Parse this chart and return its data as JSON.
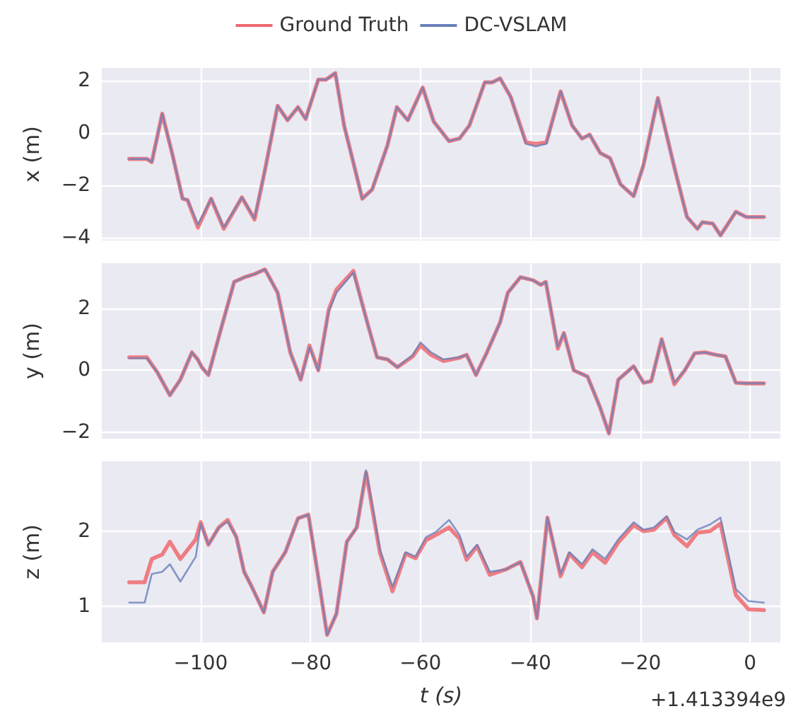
{
  "chart_data": [
    {
      "type": "line",
      "ylabel": "x (m)",
      "xlim": [
        -118,
        5.5
      ],
      "xticks": [
        -100,
        -80,
        -60,
        -40,
        -20,
        0
      ],
      "ylim": [
        -4.1,
        2.5
      ],
      "yticks": [
        -4,
        -2,
        0,
        2
      ],
      "grid": true,
      "legend": "top",
      "tick_labels": "y",
      "marker": "none",
      "line_style": "solid",
      "series": [
        {
          "name": "Ground Truth",
          "color": "#ee6a70",
          "x": [
            -113,
            -109.8,
            -108.9,
            -107,
            -105.1,
            -103.3,
            -102.4,
            -100.5,
            -98.1,
            -95.8,
            -92.5,
            -90.2,
            -88.3,
            -86,
            -84.2,
            -82.3,
            -80.9,
            -78.6,
            -77.2,
            -75.5,
            -73.9,
            -72,
            -70.6,
            -68.8,
            -66,
            -64.3,
            -62.3,
            -59.6,
            -57.6,
            -54.8,
            -52.9,
            -51.1,
            -48.3,
            -46.9,
            -45.5,
            -43.6,
            -40.8,
            -39,
            -37.1,
            -34.5,
            -32.4,
            -30.6,
            -29.2,
            -27.3,
            -25.5,
            -23.6,
            -21.2,
            -19.4,
            -16.8,
            -13.8,
            -11.5,
            -9.6,
            -8.7,
            -6.8,
            -5.4,
            -2.6,
            -0.7,
            2.5
          ],
          "values": [
            -0.98,
            -0.98,
            -1.1,
            0.75,
            -0.85,
            -2.5,
            -2.55,
            -3.6,
            -2.5,
            -3.65,
            -2.45,
            -3.3,
            -1.4,
            1.05,
            0.5,
            1.0,
            0.55,
            2.05,
            2.05,
            2.3,
            0.3,
            -1.3,
            -2.5,
            -2.15,
            -0.45,
            1.0,
            0.5,
            1.75,
            0.45,
            -0.3,
            -0.2,
            0.3,
            1.95,
            1.95,
            2.1,
            1.4,
            -0.35,
            -0.4,
            -0.35,
            1.6,
            0.3,
            -0.2,
            -0.05,
            -0.75,
            -0.95,
            -1.95,
            -2.4,
            -1.2,
            1.35,
            -1.3,
            -3.2,
            -3.65,
            -3.4,
            -3.45,
            -3.9,
            -3.0,
            -3.2,
            -3.2
          ]
        },
        {
          "name": "DC-VSLAM",
          "color": "#6a80b9",
          "x": [
            -113,
            -109.8,
            -108.9,
            -107,
            -105.1,
            -103.3,
            -102.4,
            -100.5,
            -98.1,
            -95.8,
            -92.5,
            -90.2,
            -88.3,
            -86,
            -84.2,
            -82.3,
            -80.9,
            -78.6,
            -77.2,
            -75.5,
            -73.9,
            -72,
            -70.6,
            -68.8,
            -66,
            -64.3,
            -62.3,
            -59.6,
            -57.6,
            -54.8,
            -52.9,
            -51.1,
            -48.3,
            -46.9,
            -45.5,
            -43.6,
            -40.8,
            -39,
            -37.1,
            -34.5,
            -32.4,
            -30.6,
            -29.2,
            -27.3,
            -25.5,
            -23.6,
            -21.2,
            -19.4,
            -16.8,
            -13.8,
            -11.5,
            -9.6,
            -8.7,
            -6.8,
            -5.4,
            -2.6,
            -0.7,
            2.5
          ],
          "values": [
            -0.98,
            -0.98,
            -1.1,
            0.75,
            -0.85,
            -2.5,
            -2.55,
            -3.5,
            -2.5,
            -3.6,
            -2.45,
            -3.25,
            -1.4,
            1.05,
            0.5,
            1.0,
            0.55,
            2.05,
            2.05,
            2.3,
            0.3,
            -1.3,
            -2.5,
            -2.15,
            -0.45,
            1.0,
            0.5,
            1.75,
            0.45,
            -0.3,
            -0.2,
            0.3,
            1.95,
            1.95,
            2.1,
            1.4,
            -0.4,
            -0.5,
            -0.4,
            1.6,
            0.3,
            -0.2,
            -0.05,
            -0.75,
            -0.95,
            -1.95,
            -2.4,
            -1.2,
            1.35,
            -1.3,
            -3.2,
            -3.65,
            -3.4,
            -3.45,
            -3.9,
            -3.0,
            -3.2,
            -3.2
          ]
        }
      ]
    },
    {
      "type": "line",
      "ylabel": "y (m)",
      "xlim": [
        -118,
        5.5
      ],
      "xticks": [
        -100,
        -80,
        -60,
        -40,
        -20,
        0
      ],
      "ylim": [
        -2.2,
        3.45
      ],
      "yticks": [
        -2,
        0,
        2
      ],
      "grid": true,
      "tick_labels": "y",
      "marker": "none",
      "line_style": "solid",
      "series": [
        {
          "color": "#ee6a70",
          "x": [
            -113,
            -109.8,
            -107.9,
            -105.6,
            -103.7,
            -101.6,
            -100.5,
            -99.8,
            -98.6,
            -96.2,
            -93.9,
            -92,
            -90.2,
            -88.3,
            -86,
            -83.7,
            -81.8,
            -80.2,
            -78.6,
            -76.7,
            -75.3,
            -72.2,
            -69.7,
            -67.9,
            -66,
            -64.2,
            -61.4,
            -60,
            -58.1,
            -55.8,
            -53,
            -51.6,
            -49.9,
            -47.9,
            -45.5,
            -44.1,
            -41.8,
            -39.5,
            -38.1,
            -37.2,
            -35,
            -33.9,
            -32.1,
            -29.6,
            -27.3,
            -25.7,
            -24,
            -21.2,
            -19.4,
            -18,
            -16.1,
            -13.8,
            -11.9,
            -10.1,
            -8.2,
            -6.3,
            -4.5,
            -2.6,
            -0.7,
            2.5
          ],
          "values": [
            0.42,
            0.42,
            -0.06,
            -0.8,
            -0.3,
            0.58,
            0.34,
            0.1,
            -0.15,
            1.4,
            2.85,
            3.0,
            3.1,
            3.25,
            2.5,
            0.58,
            -0.3,
            0.8,
            0.0,
            1.95,
            2.6,
            3.2,
            1.55,
            0.42,
            0.35,
            0.1,
            0.45,
            0.8,
            0.5,
            0.3,
            0.4,
            0.5,
            -0.15,
            0.58,
            1.55,
            2.5,
            3.0,
            2.9,
            2.75,
            2.85,
            0.7,
            1.2,
            0.0,
            -0.2,
            -1.2,
            -2.03,
            -0.3,
            0.13,
            -0.4,
            -0.35,
            1.0,
            -0.45,
            0.0,
            0.55,
            0.58,
            0.5,
            0.45,
            -0.4,
            -0.42,
            -0.42
          ]
        },
        {
          "color": "#6a80b9",
          "x": [
            -113,
            -109.8,
            -107.9,
            -105.6,
            -103.7,
            -101.6,
            -100.5,
            -99.8,
            -98.6,
            -96.2,
            -93.9,
            -92,
            -90.2,
            -88.3,
            -86,
            -83.7,
            -81.8,
            -80.2,
            -78.6,
            -76.7,
            -75.3,
            -72.2,
            -69.7,
            -67.9,
            -66,
            -64.2,
            -61.4,
            -60,
            -58.1,
            -55.8,
            -53,
            -51.6,
            -49.9,
            -47.9,
            -45.5,
            -44.1,
            -41.8,
            -39.5,
            -38.1,
            -37.2,
            -35,
            -33.9,
            -32.1,
            -29.6,
            -27.3,
            -25.7,
            -24,
            -21.2,
            -19.4,
            -18,
            -16.1,
            -13.8,
            -11.9,
            -10.1,
            -8.2,
            -6.3,
            -4.5,
            -2.6,
            -0.7,
            2.5
          ],
          "values": [
            0.39,
            0.39,
            -0.06,
            -0.8,
            -0.3,
            0.58,
            0.34,
            0.1,
            -0.15,
            1.4,
            2.85,
            3.0,
            3.1,
            3.25,
            2.5,
            0.58,
            -0.3,
            0.75,
            0.0,
            1.9,
            2.5,
            3.15,
            1.55,
            0.42,
            0.35,
            0.1,
            0.5,
            0.9,
            0.58,
            0.35,
            0.42,
            0.5,
            -0.15,
            0.58,
            1.55,
            2.5,
            3.0,
            2.9,
            2.75,
            2.85,
            0.75,
            1.2,
            0.0,
            -0.2,
            -1.2,
            -2.03,
            -0.3,
            0.13,
            -0.4,
            -0.35,
            1.0,
            -0.4,
            0.0,
            0.55,
            0.58,
            0.5,
            0.45,
            -0.4,
            -0.42,
            -0.42
          ]
        }
      ]
    },
    {
      "type": "line",
      "xlabel": "t (s)",
      "ylabel": "z (m)",
      "annotations": [
        "+1.413394e9"
      ],
      "xlim": [
        -118,
        5.5
      ],
      "xticks": [
        -100,
        -80,
        -60,
        -40,
        -20,
        0
      ],
      "ylim": [
        0.52,
        2.93
      ],
      "yticks": [
        1,
        2
      ],
      "grid": true,
      "marker": "none",
      "line_style": "solid",
      "series": [
        {
          "color": "#ee6a70",
          "x": [
            -113,
            -110.2,
            -108.9,
            -107,
            -105.6,
            -103.7,
            -100.9,
            -100,
            -98.6,
            -96.7,
            -95.1,
            -93.5,
            -92.1,
            -90.7,
            -88.5,
            -86.9,
            -84.6,
            -82.3,
            -80.4,
            -78.6,
            -77,
            -75.3,
            -73.4,
            -71.6,
            -69.9,
            -67.4,
            -65.1,
            -62.7,
            -60.9,
            -59,
            -57.2,
            -54.8,
            -52.9,
            -51.6,
            -49.7,
            -47.4,
            -44.5,
            -41.8,
            -39.5,
            -38.8,
            -36.9,
            -34.5,
            -32.9,
            -30.6,
            -28.7,
            -26.4,
            -24,
            -21.2,
            -19.4,
            -17.5,
            -15.2,
            -13.8,
            -11.5,
            -9.6,
            -7.3,
            -5.4,
            -2.6,
            -0.3,
            2.5
          ],
          "values": [
            1.32,
            1.32,
            1.63,
            1.69,
            1.86,
            1.63,
            1.89,
            2.12,
            1.82,
            2.05,
            2.15,
            1.92,
            1.46,
            1.26,
            0.92,
            1.46,
            1.72,
            2.17,
            2.22,
            1.39,
            0.62,
            0.9,
            1.86,
            2.05,
            2.78,
            1.72,
            1.2,
            1.7,
            1.64,
            1.88,
            1.95,
            2.05,
            1.9,
            1.62,
            1.8,
            1.42,
            1.49,
            1.59,
            1.13,
            0.84,
            2.18,
            1.4,
            1.7,
            1.52,
            1.72,
            1.58,
            1.85,
            2.08,
            2.0,
            2.02,
            2.18,
            1.95,
            1.8,
            1.98,
            2.0,
            2.1,
            1.15,
            0.96,
            0.95
          ]
        },
        {
          "color": "#6a80b9",
          "x": [
            -113,
            -110.2,
            -108.9,
            -107,
            -105.6,
            -103.7,
            -100.9,
            -100,
            -98.6,
            -96.7,
            -95.1,
            -93.5,
            -92.1,
            -90.7,
            -88.5,
            -86.9,
            -84.6,
            -82.3,
            -80.4,
            -78.6,
            -77,
            -75.3,
            -73.4,
            -71.6,
            -69.9,
            -67.4,
            -65.1,
            -62.7,
            -60.9,
            -59,
            -57.2,
            -54.8,
            -52.9,
            -51.6,
            -49.7,
            -47.4,
            -44.5,
            -41.8,
            -39.5,
            -38.8,
            -36.9,
            -34.5,
            -32.9,
            -30.6,
            -28.7,
            -26.4,
            -24,
            -21.2,
            -19.4,
            -17.5,
            -15.2,
            -13.8,
            -11.5,
            -9.6,
            -7.3,
            -5.4,
            -2.6,
            -0.3,
            2.5
          ],
          "values": [
            1.05,
            1.05,
            1.43,
            1.46,
            1.56,
            1.33,
            1.66,
            2.1,
            1.82,
            2.05,
            2.13,
            1.92,
            1.46,
            1.26,
            0.92,
            1.46,
            1.72,
            2.17,
            2.22,
            1.39,
            0.62,
            0.9,
            1.86,
            2.05,
            2.81,
            1.76,
            1.26,
            1.72,
            1.66,
            1.92,
            1.99,
            2.15,
            1.95,
            1.66,
            1.82,
            1.46,
            1.49,
            1.59,
            1.13,
            0.84,
            2.18,
            1.43,
            1.72,
            1.56,
            1.76,
            1.63,
            1.89,
            2.12,
            2.02,
            2.05,
            2.2,
            1.99,
            1.89,
            2.02,
            2.09,
            2.18,
            1.23,
            1.07,
            1.05
          ]
        }
      ]
    }
  ]
}
